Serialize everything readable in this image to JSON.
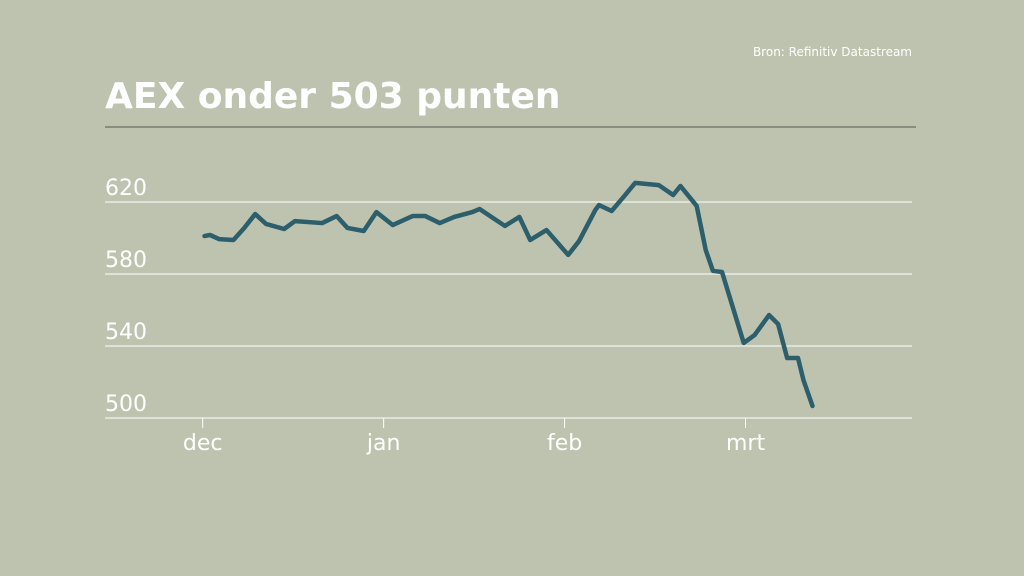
{
  "chart_data": {
    "type": "line",
    "title": "AEX onder 503 punten",
    "source": "Bron: Refinitiv Datastream",
    "x": [
      0.01,
      0.04,
      0.09,
      0.17,
      0.23,
      0.29,
      0.35,
      0.45,
      0.51,
      0.66,
      0.74,
      0.8,
      0.89,
      0.96,
      1.05,
      1.16,
      1.23,
      1.31,
      1.39,
      1.49,
      1.53,
      1.67,
      1.75,
      1.81,
      1.9,
      2.02,
      2.08,
      2.17,
      2.19,
      2.26,
      2.33,
      2.39,
      2.52,
      2.6,
      2.64,
      2.73,
      2.78,
      2.82,
      2.87,
      2.99,
      3.05,
      3.13,
      3.18,
      3.23,
      3.29,
      3.32,
      3.37
    ],
    "values": [
      601.1,
      601.7,
      599.4,
      598.9,
      605.6,
      613.3,
      607.8,
      605,
      609.4,
      608.3,
      612.2,
      605.6,
      603.9,
      614.4,
      607.2,
      612.2,
      612.2,
      608.3,
      611.7,
      614.4,
      616.1,
      606.7,
      611.7,
      598.9,
      604.4,
      590.6,
      598.3,
      615.6,
      618.3,
      615,
      623.3,
      630.6,
      629.4,
      623.9,
      628.9,
      617.8,
      593.3,
      581.7,
      581.1,
      541.7,
      546.1,
      557.2,
      552.2,
      533.3,
      533.3,
      521.1,
      506.7
    ],
    "color": "#2c5e6b",
    "xlim": [
      -0.54,
      3.92
    ],
    "xticks": [
      {
        "value": 0,
        "label": "dec"
      },
      {
        "value": 1,
        "label": "jan"
      },
      {
        "value": 2,
        "label": "feb"
      },
      {
        "value": 3,
        "label": "mrt"
      }
    ],
    "ylim": [
      500,
      640
    ],
    "yticks": [
      500,
      540,
      580,
      620
    ],
    "grid": true
  }
}
